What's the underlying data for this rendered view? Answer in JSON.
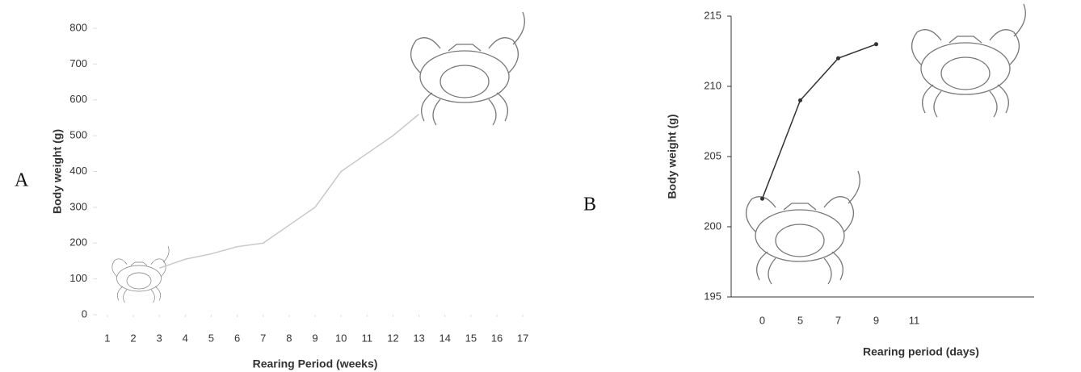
{
  "chart_data": [
    {
      "type": "line",
      "panel_label": "A",
      "x_label": "Rearing Period (weeks)",
      "y_label": "Body weight (g)",
      "x": [
        3,
        4,
        5,
        6,
        7,
        8,
        9,
        10,
        11,
        12,
        13
      ],
      "values": [
        130,
        155,
        170,
        190,
        200,
        250,
        300,
        400,
        450,
        500,
        560
      ],
      "color": "#c8c8c8",
      "xlim": [
        0.6,
        17.4
      ],
      "xticks": [
        1,
        2,
        3,
        4,
        5,
        6,
        7,
        8,
        9,
        10,
        11,
        12,
        13,
        14,
        15,
        16,
        17
      ],
      "ylim": [
        0,
        800
      ],
      "yticks": [
        0,
        100,
        200,
        300,
        400,
        500,
        600,
        700,
        800
      ]
    },
    {
      "type": "line",
      "panel_label": "B",
      "x_label": "Rearing period (days)",
      "y_label": "Body weight (g)",
      "categories": [
        "0",
        "5",
        "7",
        "9",
        "11"
      ],
      "values": [
        202,
        209,
        212,
        213,
        null
      ],
      "color": "#333333",
      "markers": true,
      "ylim": [
        195,
        215
      ],
      "yticks": [
        195,
        200,
        205,
        210,
        215
      ]
    }
  ]
}
